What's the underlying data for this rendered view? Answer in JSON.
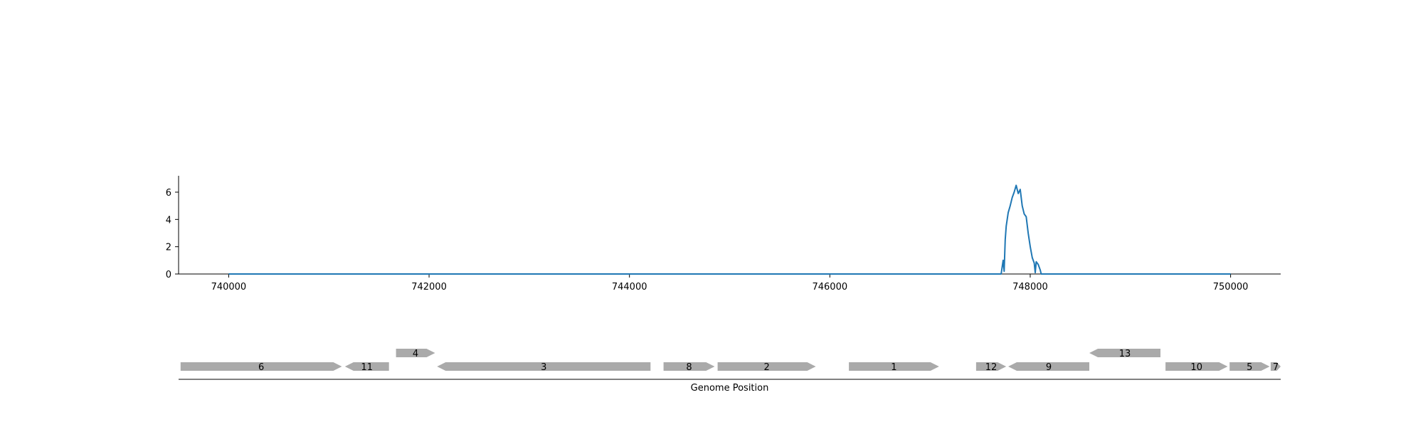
{
  "chart_data": [
    {
      "type": "line",
      "title": "",
      "xlabel": "",
      "ylabel": "",
      "xlim": [
        739500,
        750500
      ],
      "ylim": [
        0,
        7.2
      ],
      "grid": false,
      "color": "#1f77b4",
      "xticks": [
        740000,
        742000,
        744000,
        746000,
        748000,
        750000
      ],
      "yticks": [
        0,
        2,
        4,
        6
      ],
      "series": [
        {
          "name": "",
          "x": [
            740000,
            747710,
            747730,
            747740,
            747750,
            747760,
            747780,
            747800,
            747820,
            747840,
            747860,
            747880,
            747900,
            747920,
            747940,
            747960,
            747980,
            748000,
            748020,
            748040,
            748050,
            748060,
            748080,
            748100,
            748110,
            750000
          ],
          "y": [
            0,
            0,
            1.0,
            0.2,
            2.5,
            3.5,
            4.5,
            5.0,
            5.6,
            6.0,
            6.5,
            5.9,
            6.2,
            5.0,
            4.4,
            4.2,
            3.0,
            2.0,
            1.2,
            0.8,
            0.1,
            0.9,
            0.7,
            0.3,
            0,
            0
          ]
        }
      ]
    },
    {
      "type": "gene_map",
      "xlabel": "Genome Position",
      "xlim": [
        739500,
        750500
      ],
      "color": "#aaaaaa",
      "genes": [
        {
          "label": "6",
          "start": 739520,
          "end": 741130,
          "strand": "+",
          "row": 0
        },
        {
          "label": "11",
          "start": 741160,
          "end": 741600,
          "strand": "-",
          "row": 0
        },
        {
          "label": "4",
          "start": 741670,
          "end": 742060,
          "strand": "+",
          "row": 1
        },
        {
          "label": "3",
          "start": 742080,
          "end": 744210,
          "strand": "-",
          "row": 0
        },
        {
          "label": "8",
          "start": 744340,
          "end": 744850,
          "strand": "+",
          "row": 0
        },
        {
          "label": "2",
          "start": 744880,
          "end": 745860,
          "strand": "+",
          "row": 0
        },
        {
          "label": "1",
          "start": 746190,
          "end": 747090,
          "strand": "+",
          "row": 0
        },
        {
          "label": "12",
          "start": 747460,
          "end": 747760,
          "strand": "+",
          "row": 0
        },
        {
          "label": "9",
          "start": 747780,
          "end": 748590,
          "strand": "-",
          "row": 0
        },
        {
          "label": "13",
          "start": 748590,
          "end": 749300,
          "strand": "-",
          "row": 1
        },
        {
          "label": "10",
          "start": 749350,
          "end": 749970,
          "strand": "+",
          "row": 0
        },
        {
          "label": "5",
          "start": 749990,
          "end": 750390,
          "strand": "+",
          "row": 0
        },
        {
          "label": "7",
          "start": 750400,
          "end": 750500,
          "strand": "+",
          "row": 0
        }
      ]
    }
  ]
}
